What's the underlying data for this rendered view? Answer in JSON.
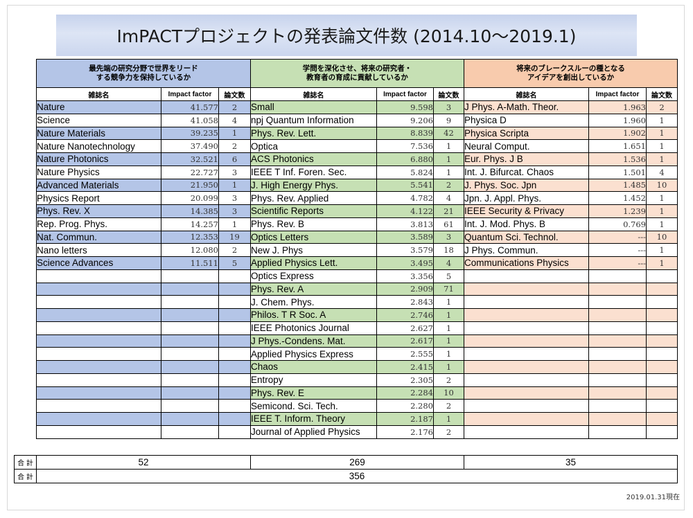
{
  "title": "ImPACTプロジェクトの発表論文件数 (2014.10～2019.1)",
  "groups": [
    {
      "heading_line1": "最先端の研究分野で世界をリード",
      "heading_line2": "する競争力を保持しているか",
      "color": "#b4c5e7"
    },
    {
      "heading_line1": "学問を深化させ、将来の研究者・",
      "heading_line2": "教育者の育成に貢献しているか",
      "color": "#c6e0b4"
    },
    {
      "heading_line1": "将来のブレークスルーの種となる",
      "heading_line2": "アイデアを創出しているか",
      "color": "#f8cbad"
    }
  ],
  "col_headers": {
    "journal": "雑誌名",
    "impact": "Impact factor",
    "count": "論文数"
  },
  "blue_rows": [
    {
      "name": "Nature",
      "if": "41.577",
      "n": "2"
    },
    {
      "name": "Science",
      "if": "41.058",
      "n": "4"
    },
    {
      "name": "Nature Materials",
      "if": "39.235",
      "n": "1"
    },
    {
      "name": "Nature Nanotechnology",
      "if": "37.490",
      "n": "2"
    },
    {
      "name": "Nature Photonics",
      "if": "32.521",
      "n": "6"
    },
    {
      "name": "Nature Physics",
      "if": "22.727",
      "n": "3"
    },
    {
      "name": "Advanced Materials",
      "if": "21.950",
      "n": "1"
    },
    {
      "name": "Physics Report",
      "if": "20.099",
      "n": "3"
    },
    {
      "name": "Phys. Rev. X",
      "if": "14.385",
      "n": "3"
    },
    {
      "name": "Rep. Prog. Phys.",
      "if": "14.257",
      "n": "1"
    },
    {
      "name": "Nat. Commun.",
      "if": "12.353",
      "n": "19"
    },
    {
      "name": "Nano  letters",
      "if": "12.080",
      "n": "2"
    },
    {
      "name": "Science Advances",
      "if": "11.511",
      "n": "5"
    }
  ],
  "green_rows": [
    {
      "name": "Small",
      "if": "9.598",
      "n": "3"
    },
    {
      "name": "npj Quantum Information",
      "if": "9.206",
      "n": "9"
    },
    {
      "name": "Phys. Rev. Lett.",
      "if": "8.839",
      "n": "42"
    },
    {
      "name": "Optica",
      "if": "7.536",
      "n": "1"
    },
    {
      "name": "ACS Photonics",
      "if": "6.880",
      "n": "1"
    },
    {
      "name": "IEEE T Inf. Foren. Sec.",
      "if": "5.824",
      "n": "1"
    },
    {
      "name": "J. High Energy Phys.",
      "if": "5.541",
      "n": "2"
    },
    {
      "name": "Phys. Rev. Applied",
      "if": "4.782",
      "n": "4"
    },
    {
      "name": "Scientific Reports",
      "if": "4.122",
      "n": "21"
    },
    {
      "name": "Phys. Rev. B",
      "if": "3.813",
      "n": "61"
    },
    {
      "name": "Optics Letters",
      "if": "3.589",
      "n": "3"
    },
    {
      "name": "New J. Phys",
      "if": "3.579",
      "n": "18"
    },
    {
      "name": "Applied Physics Lett.",
      "if": "3.495",
      "n": "4"
    },
    {
      "name": "Optics Express",
      "if": "3.356",
      "n": "5"
    },
    {
      "name": "Phys. Rev. A",
      "if": "2.909",
      "n": "71"
    },
    {
      "name": "J. Chem. Phys.",
      "if": "2.843",
      "n": "1"
    },
    {
      "name": "Philos. T R Soc. A",
      "if": "2.746",
      "n": "1"
    },
    {
      "name": "IEEE Photonics Journal",
      "if": "2.627",
      "n": "1"
    },
    {
      "name": "J Phys.-Condens. Mat.",
      "if": "2.617",
      "n": "1"
    },
    {
      "name": "Applied Physics Express",
      "if": "2.555",
      "n": "1"
    },
    {
      "name": "Chaos",
      "if": "2.415",
      "n": "1"
    },
    {
      "name": "Entropy",
      "if": "2.305",
      "n": "2"
    },
    {
      "name": "Phys. Rev. E",
      "if": "2.284",
      "n": "10"
    },
    {
      "name": "Semicond. Sci. Tech.",
      "if": "2.280",
      "n": "2"
    },
    {
      "name": "IEEE T. Inform. Theory",
      "if": "2.187",
      "n": "1"
    },
    {
      "name": "Journal of Applied Physics",
      "if": "2.176",
      "n": "2"
    }
  ],
  "red_rows": [
    {
      "name": "J Phys. A-Math. Theor.",
      "if": "1.963",
      "n": "2"
    },
    {
      "name": "Physica D",
      "if": "1.960",
      "n": "1"
    },
    {
      "name": "Physica Scripta",
      "if": "1.902",
      "n": "1"
    },
    {
      "name": "Neural Comput.",
      "if": "1.651",
      "n": "1"
    },
    {
      "name": "Eur. Phys. J B",
      "if": "1.536",
      "n": "1"
    },
    {
      "name": "Int. J. Bifurcat. Chaos",
      "if": "1.501",
      "n": "4"
    },
    {
      "name": "J. Phys. Soc.  Jpn",
      "if": "1.485",
      "n": "10"
    },
    {
      "name": "Jpn. J. Appl. Phys.",
      "if": "1.452",
      "n": "1"
    },
    {
      "name": "IEEE Security & Privacy",
      "if": "1.239",
      "n": "1"
    },
    {
      "name": "Int. J. Mod. Phys. B",
      "if": "0.769",
      "n": "1"
    },
    {
      "name": "Quantum Sci. Technol.",
      "if": "---",
      "n": "10"
    },
    {
      "name": "J Phys. Commun.",
      "if": "---",
      "n": "1"
    },
    {
      "name": "Communications Physics",
      "if": "---",
      "n": "1"
    }
  ],
  "totals": {
    "label": "合 計",
    "blue": "52",
    "green": "269",
    "red": "35",
    "grand": "356"
  },
  "date_note": "2019.01.31現在"
}
